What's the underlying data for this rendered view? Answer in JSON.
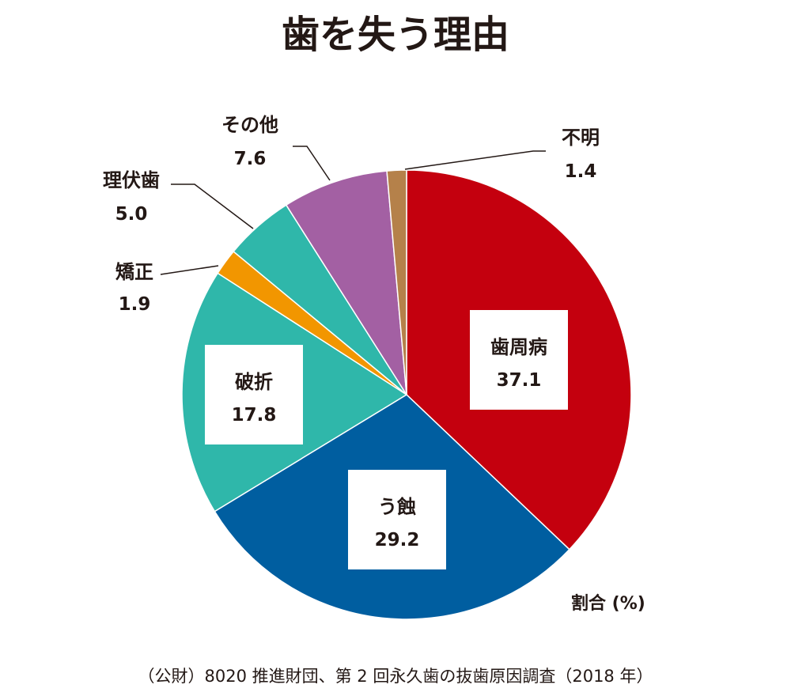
{
  "title": "歯を失う理由",
  "unit_label": "割合 (%)",
  "source": "（公財）8020 推進財団、第 2 回永久歯の抜歯原因調査（2018 年）",
  "chart_data": {
    "type": "pie",
    "title": "歯を失う理由",
    "unit": "割合 (%)",
    "start_angle_deg": 0,
    "direction": "clockwise",
    "slices": [
      {
        "label": "歯周病",
        "value": 37.1,
        "value_text": "37.1",
        "color": "#c4000e",
        "label_style": "boxed-inside"
      },
      {
        "label": "う蝕",
        "value": 29.2,
        "value_text": "29.2",
        "color": "#005ea0",
        "label_style": "boxed-inside"
      },
      {
        "label": "破折",
        "value": 17.8,
        "value_text": "17.8",
        "color": "#2fb7aa",
        "label_style": "boxed-inside"
      },
      {
        "label": "矯正",
        "value": 1.9,
        "value_text": "1.9",
        "color": "#f29600",
        "label_style": "outside-leader"
      },
      {
        "label": "理伏歯",
        "value": 5.0,
        "value_text": "5.0",
        "color": "#2fb7aa",
        "label_style": "outside-leader"
      },
      {
        "label": "その他",
        "value": 7.6,
        "value_text": "7.6",
        "color": "#a360a3",
        "label_style": "outside-leader"
      },
      {
        "label": "不明",
        "value": 1.4,
        "value_text": "1.4",
        "color": "#b5814a",
        "label_style": "outside-leader"
      }
    ]
  }
}
